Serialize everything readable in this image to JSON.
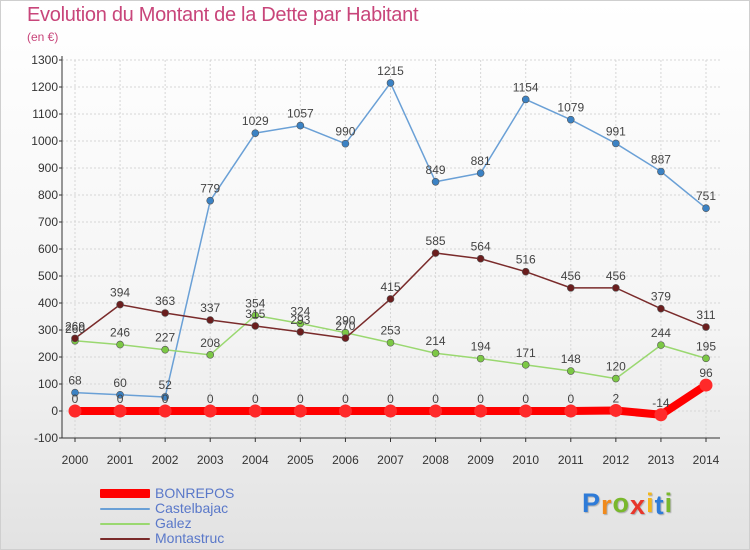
{
  "header": {
    "title": "Evolution du Montant de la Dette par Habitant",
    "unit": "(en €)"
  },
  "brand": {
    "letters": [
      "P",
      "r",
      "o",
      "x",
      "i",
      "t",
      "i"
    ],
    "colors": [
      "#2e7bd8",
      "#f08a1c",
      "#79b82c",
      "#e8362b",
      "#f2b71b",
      "#2e7bd8",
      "#79b82c"
    ]
  },
  "colors": {
    "title": "#c8457a",
    "axis": "#333333",
    "grid": "#d6d6d6",
    "legend_text": "#5a78c9"
  },
  "chart_data": {
    "type": "line",
    "title": "Evolution du Montant de la Dette par Habitant",
    "ylabel": "(en €)",
    "xlabel": "",
    "x": [
      "2000",
      "2001",
      "2002",
      "2003",
      "2004",
      "2005",
      "2006",
      "2007",
      "2008",
      "2009",
      "2010",
      "2011",
      "2012",
      "2013",
      "2014"
    ],
    "ylim": [
      -100,
      1300
    ],
    "yticks": [
      "-100",
      "0",
      "100",
      "200",
      "300",
      "400",
      "500",
      "600",
      "700",
      "800",
      "900",
      "1000",
      "1100",
      "1200",
      "1300"
    ],
    "grid": true,
    "legend_position": "bottom-left",
    "series": [
      {
        "name": "BONREPOS",
        "color": "#ff0000",
        "point_color": "#ff2a2a",
        "thick": true,
        "values": [
          0,
          0,
          0,
          0,
          0,
          0,
          0,
          0,
          0,
          0,
          0,
          0,
          2,
          -14,
          96
        ],
        "labels": [
          "0",
          "0",
          "0",
          "0",
          "0",
          "0",
          "0",
          "0",
          "0",
          "0",
          "0",
          "0",
          "2",
          "-14",
          "96"
        ]
      },
      {
        "name": "Castelbajac",
        "color": "#6aa0d6",
        "point_color": "#3b82c4",
        "thick": false,
        "values": [
          68,
          60,
          52,
          779,
          1029,
          1057,
          990,
          1215,
          849,
          881,
          1154,
          1079,
          991,
          887,
          751
        ],
        "labels": [
          "68",
          "60",
          "52",
          "779",
          "1029",
          "1057",
          "990",
          "1215",
          "849",
          "881",
          "1154",
          "1079",
          "991",
          "887",
          "751"
        ]
      },
      {
        "name": "Galez",
        "color": "#9ad870",
        "point_color": "#7cc845",
        "thick": false,
        "values": [
          260,
          246,
          227,
          208,
          354,
          324,
          290,
          253,
          214,
          194,
          171,
          148,
          120,
          244,
          195
        ],
        "labels": [
          "260",
          "246",
          "227",
          "208",
          "354",
          "324",
          "290",
          "253",
          "214",
          "194",
          "171",
          "148",
          "120",
          "244",
          "195"
        ]
      },
      {
        "name": "Montastruc",
        "color": "#7a2b2b",
        "point_color": "#6b1e1e",
        "thick": false,
        "values": [
          269,
          394,
          363,
          337,
          315,
          293,
          270,
          415,
          585,
          564,
          516,
          456,
          456,
          379,
          311
        ],
        "labels": [
          "269",
          "394",
          "363",
          "337",
          "315",
          "293",
          "270",
          "415",
          "585",
          "564",
          "516",
          "456",
          "456",
          "379",
          "311"
        ]
      }
    ]
  }
}
